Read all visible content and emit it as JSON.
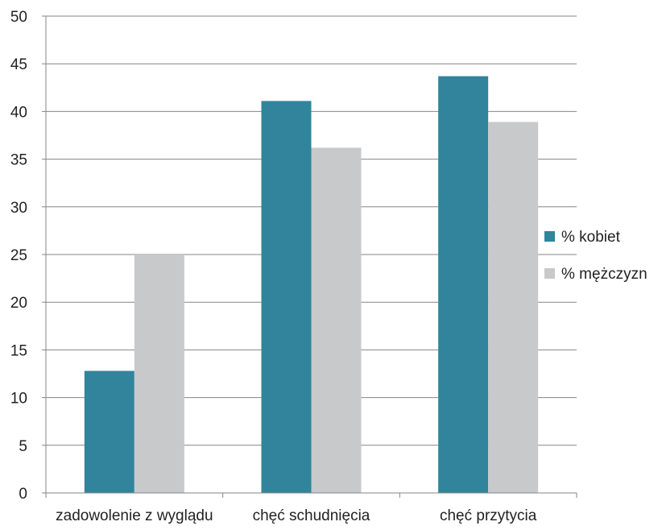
{
  "chart_data": {
    "type": "bar",
    "categories": [
      "zadowolenie z wyglądu",
      "chęć schudnięcia",
      "chęć przytycia"
    ],
    "series": [
      {
        "name": "% kobiet",
        "values": [
          12.8,
          41.1,
          43.7
        ],
        "color": "#31849B"
      },
      {
        "name": "% mężczyzn",
        "values": [
          25.0,
          36.2,
          38.9
        ],
        "color": "#C8C9CB"
      }
    ],
    "y_ticks": [
      "0",
      "5",
      "10",
      "15",
      "20",
      "25",
      "30",
      "35",
      "40",
      "45",
      "50"
    ],
    "ylim": [
      0,
      50
    ],
    "grid": true,
    "legend_position": "right",
    "gridline_color": "#868686"
  }
}
